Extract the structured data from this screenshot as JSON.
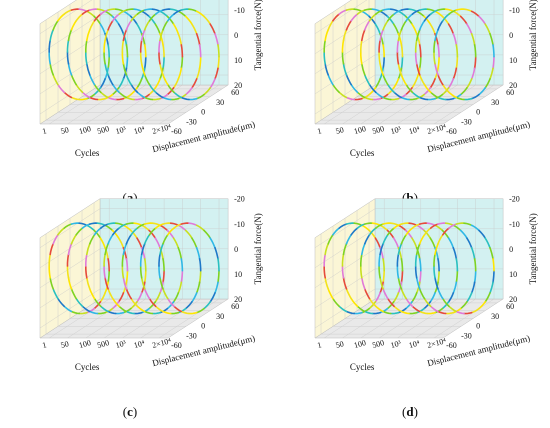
{
  "chart_data": [
    {
      "panel_label": "a",
      "type": "line",
      "chart_kind": "3d hysteresis loops (fretting loops)",
      "title": "",
      "xlabel": "Cycles",
      "ylabel": "Displacement amplitude(μm)",
      "zlabel": "Tangential force(N)",
      "cycle_ticks": [
        "1",
        "50",
        "100",
        "500",
        "10³",
        "10⁴",
        "2×10⁴"
      ],
      "displacement_ticks": [
        -60,
        -30,
        0,
        30,
        60
      ],
      "force_ticks": [
        -20,
        -10,
        0,
        10,
        20
      ],
      "displacement_range": [
        -60,
        60
      ],
      "force_range": [
        -20,
        20
      ],
      "loops": [
        {
          "cycle": "1",
          "displacement_amplitude": 60,
          "force_amplitude": 20
        },
        {
          "cycle": "50",
          "displacement_amplitude": 60,
          "force_amplitude": 20
        },
        {
          "cycle": "100",
          "displacement_amplitude": 60,
          "force_amplitude": 20
        },
        {
          "cycle": "500",
          "displacement_amplitude": 60,
          "force_amplitude": 20
        },
        {
          "cycle": "10³",
          "displacement_amplitude": 60,
          "force_amplitude": 20
        },
        {
          "cycle": "10⁴",
          "displacement_amplitude": 60,
          "force_amplitude": 20
        },
        {
          "cycle": "2×10⁴",
          "displacement_amplitude": 60,
          "force_amplitude": 20
        }
      ],
      "grid": true,
      "colors": {
        "back_wall": "#fbf6d6",
        "side_wall": "#d3f1f1",
        "floor": "#e9e9e9"
      }
    },
    {
      "panel_label": "b",
      "type": "line",
      "chart_kind": "3d hysteresis loops (fretting loops)",
      "title": "",
      "xlabel": "Cycles",
      "ylabel": "Displacement amplitude(μm)",
      "zlabel": "Tangential force(N)",
      "cycle_ticks": [
        "1",
        "50",
        "100",
        "500",
        "10³",
        "10⁴",
        "2×10⁴"
      ],
      "displacement_ticks": [
        -60,
        -30,
        0,
        30,
        60
      ],
      "force_ticks": [
        -20,
        -10,
        0,
        10,
        20
      ],
      "displacement_range": [
        -60,
        60
      ],
      "force_range": [
        -20,
        20
      ],
      "loops": [
        {
          "cycle": "1",
          "displacement_amplitude": 60,
          "force_amplitude": 20
        },
        {
          "cycle": "50",
          "displacement_amplitude": 60,
          "force_amplitude": 20
        },
        {
          "cycle": "100",
          "displacement_amplitude": 60,
          "force_amplitude": 20
        },
        {
          "cycle": "500",
          "displacement_amplitude": 60,
          "force_amplitude": 20
        },
        {
          "cycle": "10³",
          "displacement_amplitude": 60,
          "force_amplitude": 20
        },
        {
          "cycle": "10⁴",
          "displacement_amplitude": 60,
          "force_amplitude": 20
        },
        {
          "cycle": "2×10⁴",
          "displacement_amplitude": 60,
          "force_amplitude": 20
        }
      ],
      "grid": true,
      "colors": {
        "back_wall": "#fbf6d6",
        "side_wall": "#d3f1f1",
        "floor": "#e9e9e9"
      }
    },
    {
      "panel_label": "c",
      "type": "line",
      "chart_kind": "3d hysteresis loops (fretting loops)",
      "title": "",
      "xlabel": "Cycles",
      "ylabel": "Displacement amplitude(μm)",
      "zlabel": "Tangential force(N)",
      "cycle_ticks": [
        "1",
        "50",
        "100",
        "500",
        "10³",
        "10⁴",
        "2×10⁴"
      ],
      "displacement_ticks": [
        -60,
        -30,
        0,
        30,
        60
      ],
      "force_ticks": [
        -20,
        -10,
        0,
        10,
        20
      ],
      "displacement_range": [
        -60,
        60
      ],
      "force_range": [
        -20,
        20
      ],
      "loops": [
        {
          "cycle": "1",
          "displacement_amplitude": 60,
          "force_amplitude": 20
        },
        {
          "cycle": "50",
          "displacement_amplitude": 60,
          "force_amplitude": 20
        },
        {
          "cycle": "100",
          "displacement_amplitude": 60,
          "force_amplitude": 20
        },
        {
          "cycle": "500",
          "displacement_amplitude": 60,
          "force_amplitude": 20
        },
        {
          "cycle": "10³",
          "displacement_amplitude": 60,
          "force_amplitude": 20
        },
        {
          "cycle": "10⁴",
          "displacement_amplitude": 60,
          "force_amplitude": 20
        },
        {
          "cycle": "2×10⁴",
          "displacement_amplitude": 60,
          "force_amplitude": 20
        }
      ],
      "grid": true,
      "colors": {
        "back_wall": "#fbf6d6",
        "side_wall": "#d3f1f1",
        "floor": "#e9e9e9"
      }
    },
    {
      "panel_label": "d",
      "type": "line",
      "chart_kind": "3d hysteresis loops (fretting loops)",
      "title": "",
      "xlabel": "Cycles",
      "ylabel": "Displacement amplitude(μm)",
      "zlabel": "Tangential force(N)",
      "cycle_ticks": [
        "1",
        "50",
        "100",
        "500",
        "10³",
        "10⁴",
        "2×10⁴"
      ],
      "displacement_ticks": [
        -60,
        -30,
        0,
        30,
        60
      ],
      "force_ticks": [
        -20,
        -10,
        0,
        10,
        20
      ],
      "displacement_range": [
        -60,
        60
      ],
      "force_range": [
        -20,
        20
      ],
      "loops": [
        {
          "cycle": "1",
          "displacement_amplitude": 60,
          "force_amplitude": 20
        },
        {
          "cycle": "50",
          "displacement_amplitude": 60,
          "force_amplitude": 20
        },
        {
          "cycle": "100",
          "displacement_amplitude": 60,
          "force_amplitude": 20
        },
        {
          "cycle": "500",
          "displacement_amplitude": 60,
          "force_amplitude": 20
        },
        {
          "cycle": "10³",
          "displacement_amplitude": 60,
          "force_amplitude": 20
        },
        {
          "cycle": "10⁴",
          "displacement_amplitude": 60,
          "force_amplitude": 20
        },
        {
          "cycle": "2×10⁴",
          "displacement_amplitude": 60,
          "force_amplitude": 20
        }
      ],
      "grid": true,
      "colors": {
        "back_wall": "#fbf6d6",
        "side_wall": "#d3f1f1",
        "floor": "#e9e9e9"
      }
    }
  ],
  "captions": {
    "a": "a",
    "b": "b",
    "c": "c",
    "d": "d"
  }
}
